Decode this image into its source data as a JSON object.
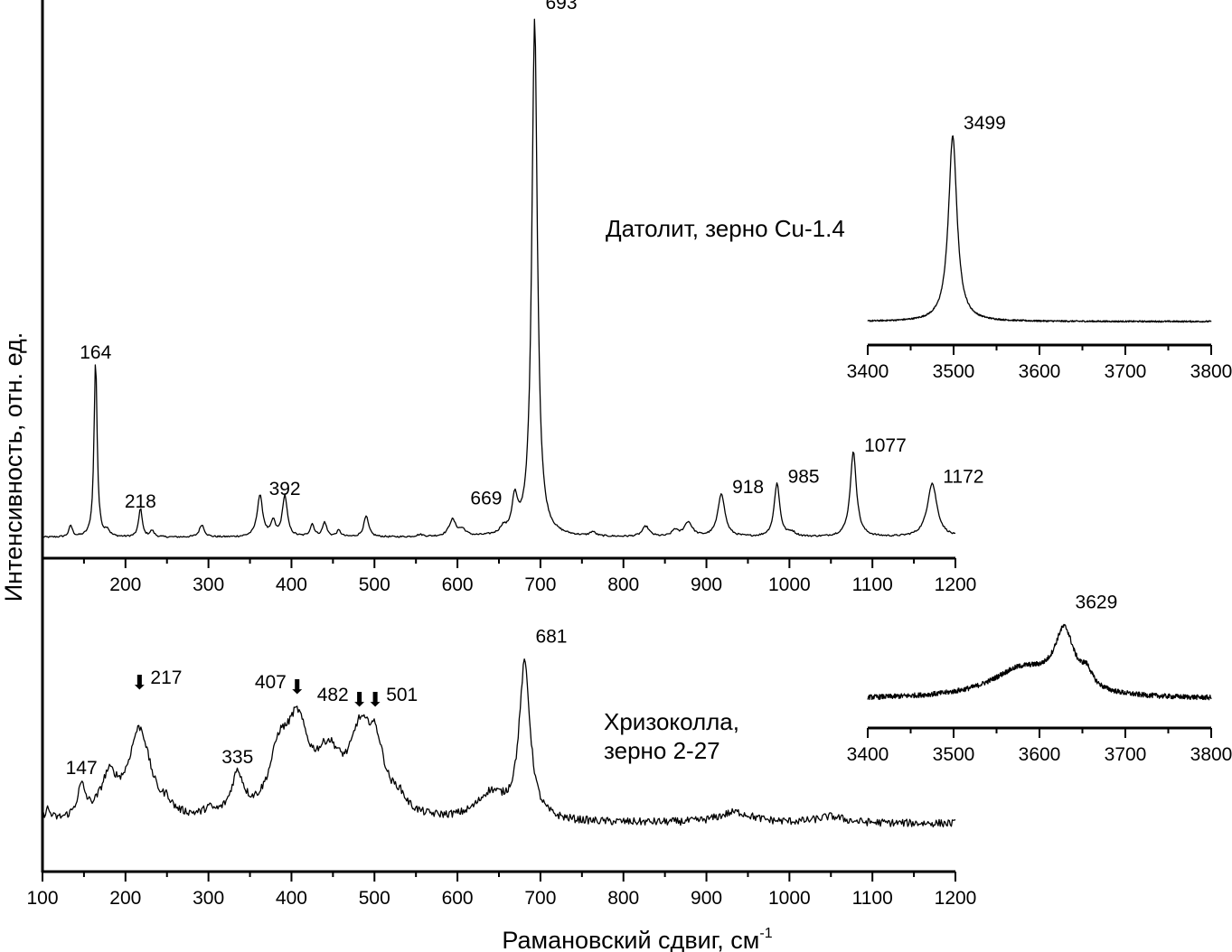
{
  "chart_data": {
    "type": "line",
    "ylabel": "Интенсивность, отн. ед.",
    "xlabel": "Рамановский сдвиг, см",
    "xlabel_superscript": "-1",
    "arrow_glyph": "⬇",
    "panels": [
      {
        "id": "datolite-main",
        "sample": "Датолит, зерно Cu-1.4",
        "xlim": [
          100,
          1200
        ],
        "xticks": [
          "200",
          "300",
          "400",
          "500",
          "600",
          "700",
          "800",
          "900",
          "1000",
          "1100",
          "1200"
        ],
        "xtick_values": [
          200,
          300,
          400,
          500,
          600,
          700,
          800,
          900,
          1000,
          1100,
          1200
        ],
        "baseline": 0.05,
        "peaks": [
          {
            "x": 134,
            "h": 0.055,
            "w": 2.5
          },
          {
            "x": 164,
            "h": 0.86,
            "w": 2.2
          },
          {
            "x": 178,
            "h": 0.03,
            "w": 3
          },
          {
            "x": 218,
            "h": 0.14,
            "w": 2.5
          },
          {
            "x": 232,
            "h": 0.03,
            "w": 3
          },
          {
            "x": 292,
            "h": 0.06,
            "w": 3.5
          },
          {
            "x": 362,
            "h": 0.2,
            "w": 4
          },
          {
            "x": 378,
            "h": 0.07,
            "w": 3
          },
          {
            "x": 392,
            "h": 0.2,
            "w": 3.5
          },
          {
            "x": 425,
            "h": 0.06,
            "w": 3
          },
          {
            "x": 440,
            "h": 0.07,
            "w": 3
          },
          {
            "x": 457,
            "h": 0.03,
            "w": 3
          },
          {
            "x": 490,
            "h": 0.1,
            "w": 3.5
          },
          {
            "x": 555,
            "h": 0.01,
            "w": 5
          },
          {
            "x": 594,
            "h": 0.08,
            "w": 5
          },
          {
            "x": 606,
            "h": 0.03,
            "w": 5
          },
          {
            "x": 655,
            "h": 0.03,
            "w": 4
          },
          {
            "x": 669,
            "h": 0.16,
            "w": 4
          },
          {
            "x": 693,
            "h": 2.5,
            "w": 4
          },
          {
            "x": 763,
            "h": 0.02,
            "w": 4
          },
          {
            "x": 827,
            "h": 0.05,
            "w": 5
          },
          {
            "x": 862,
            "h": 0.03,
            "w": 4
          },
          {
            "x": 878,
            "h": 0.07,
            "w": 6
          },
          {
            "x": 918,
            "h": 0.21,
            "w": 5
          },
          {
            "x": 985,
            "h": 0.26,
            "w": 4
          },
          {
            "x": 1003,
            "h": 0.02,
            "w": 5
          },
          {
            "x": 1077,
            "h": 0.41,
            "w": 4.5
          },
          {
            "x": 1172,
            "h": 0.26,
            "w": 7
          }
        ],
        "labels": [
          {
            "text": "164",
            "x": 164,
            "y": 0.868
          },
          {
            "text": "218",
            "x": 218,
            "y": 0.15
          },
          {
            "text": "392",
            "x": 392,
            "y": 0.21
          },
          {
            "text": "669",
            "x": 669,
            "y": 0.165
          },
          {
            "text": "693",
            "x": 693,
            "y": 2.55
          },
          {
            "text": "918",
            "x": 918,
            "y": 0.22
          },
          {
            "text": "985",
            "x": 985,
            "y": 0.27
          },
          {
            "text": "1077",
            "x": 1077,
            "y": 0.42
          },
          {
            "text": "1172",
            "x": 1172,
            "y": 0.27
          }
        ]
      },
      {
        "id": "datolite-inset",
        "sample": "",
        "xlim": [
          3400,
          3800
        ],
        "xticks": [
          "3400",
          "3500",
          "3600",
          "3700",
          "3800"
        ],
        "xtick_values": [
          3400,
          3500,
          3600,
          3700,
          3800
        ],
        "baseline": 0.0,
        "peaks": [
          {
            "x": 3499,
            "h": 1.0,
            "w": 6
          }
        ],
        "labels": [
          {
            "text": "3499",
            "x": 3499,
            "y": 1.02
          }
        ]
      },
      {
        "id": "chrysocolla-main",
        "sample": "Хризоколла, зерно 2-27",
        "sample_lines": [
          "Хризоколла,",
          "зерно 2-27"
        ],
        "xlim": [
          100,
          1200
        ],
        "xticks": [
          "100",
          "200",
          "300",
          "400",
          "500",
          "600",
          "700",
          "800",
          "900",
          "1000",
          "1100",
          "1200"
        ],
        "xtick_values": [
          100,
          200,
          300,
          400,
          500,
          600,
          700,
          800,
          900,
          1000,
          1100,
          1200
        ],
        "baseline": 0.0,
        "peaks": [
          {
            "x": 106,
            "h": 0.05,
            "w": 4
          },
          {
            "x": 147,
            "h": 0.14,
            "w": 6
          },
          {
            "x": 180,
            "h": 0.18,
            "w": 12
          },
          {
            "x": 217,
            "h": 0.42,
            "w": 16
          },
          {
            "x": 250,
            "h": 0.04,
            "w": 6
          },
          {
            "x": 300,
            "h": 0.03,
            "w": 6
          },
          {
            "x": 335,
            "h": 0.19,
            "w": 9
          },
          {
            "x": 385,
            "h": 0.25,
            "w": 14
          },
          {
            "x": 407,
            "h": 0.38,
            "w": 16
          },
          {
            "x": 445,
            "h": 0.26,
            "w": 20
          },
          {
            "x": 482,
            "h": 0.3,
            "w": 14
          },
          {
            "x": 501,
            "h": 0.3,
            "w": 14
          },
          {
            "x": 530,
            "h": 0.06,
            "w": 10
          },
          {
            "x": 640,
            "h": 0.12,
            "w": 20
          },
          {
            "x": 681,
            "h": 0.72,
            "w": 8
          },
          {
            "x": 935,
            "h": 0.05,
            "w": 25
          },
          {
            "x": 1050,
            "h": 0.03,
            "w": 20
          }
        ],
        "labels": [
          {
            "text": "147",
            "x": 147,
            "y": 0.19
          },
          {
            "text": "217",
            "x": 217,
            "y": 0.6,
            "arrow": true
          },
          {
            "text": "335",
            "x": 335,
            "y": 0.24
          },
          {
            "text": "407",
            "x": 407,
            "y": 0.58,
            "arrow": true
          },
          {
            "text": "482",
            "x": 482,
            "y": 0.52,
            "arrow": true
          },
          {
            "text": "501",
            "x": 501,
            "y": 0.52,
            "arrow": true
          },
          {
            "text": "681",
            "x": 681,
            "y": 0.8
          }
        ]
      },
      {
        "id": "chrysocolla-inset",
        "sample": "",
        "xlim": [
          3400,
          3800
        ],
        "xticks": [
          "3400",
          "3500",
          "3600",
          "3700",
          "3800"
        ],
        "xtick_values": [
          3400,
          3500,
          3600,
          3700,
          3800
        ],
        "baseline": 0.0,
        "peaks": [
          {
            "x": 3580,
            "h": 0.35,
            "w": 45
          },
          {
            "x": 3629,
            "h": 0.7,
            "w": 14
          },
          {
            "x": 3655,
            "h": 0.18,
            "w": 8
          }
        ],
        "labels": [
          {
            "text": "3629",
            "x": 3629,
            "y": 1.05
          }
        ]
      }
    ]
  }
}
